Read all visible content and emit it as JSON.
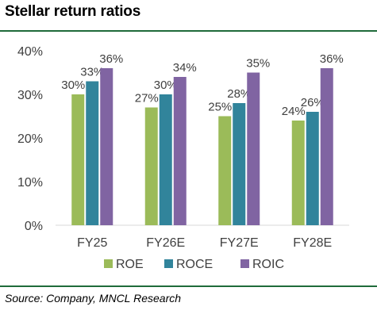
{
  "header": {
    "title": "Stellar return ratios"
  },
  "footer": {
    "source": "Source: Company, MNCL Research"
  },
  "chart_data": {
    "type": "bar",
    "title": "Stellar return ratios",
    "categories": [
      "FY25",
      "FY26E",
      "FY27E",
      "FY28E"
    ],
    "series": [
      {
        "name": "ROE",
        "color": "#9bbb59",
        "values": [
          30,
          27,
          25,
          24
        ],
        "labels": [
          "30%",
          "27%",
          "25%",
          "24%"
        ]
      },
      {
        "name": "ROCE",
        "color": "#31849b",
        "values": [
          33,
          30,
          28,
          26
        ],
        "labels": [
          "33%",
          "30%",
          "28%",
          "26%"
        ]
      },
      {
        "name": "ROIC",
        "color": "#8064a2",
        "values": [
          36,
          34,
          35,
          36
        ],
        "labels": [
          "36%",
          "34%",
          "35%",
          "36%"
        ]
      }
    ],
    "ylim": [
      0,
      40
    ],
    "yticks": [
      0,
      10,
      20,
      30,
      40
    ],
    "ytick_labels": [
      "0%",
      "10%",
      "20%",
      "30%",
      "40%"
    ],
    "grid": false,
    "legend_position": "bottom"
  }
}
